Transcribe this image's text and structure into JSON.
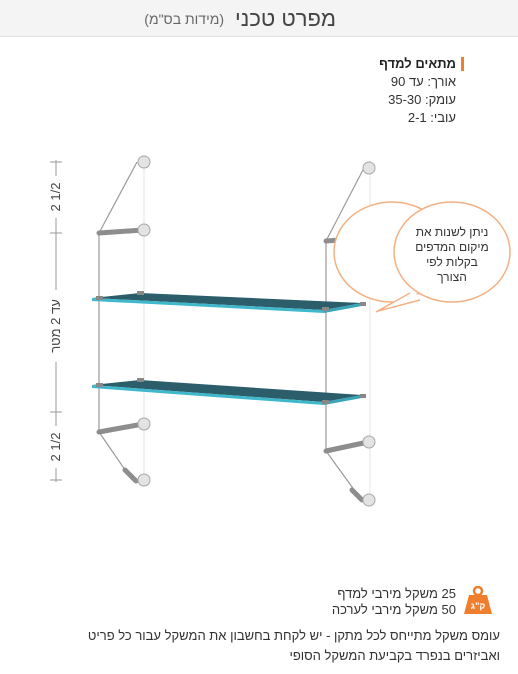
{
  "header": {
    "title": "מפרט טכני",
    "subtitle": "(מידות בס\"מ)"
  },
  "specs": {
    "title": "מתאים למדף",
    "lines": [
      "אורך: עד 90",
      "עומק: 35-30",
      "עובי: 2-1"
    ]
  },
  "dimensions": {
    "top": "2 1/2",
    "middle": "עד 2 מטר",
    "bottom": "2 1/2"
  },
  "callout": {
    "lines": [
      "ניתן לשנות את",
      "מיקום המדפים",
      "בקלות לפי",
      "הצורך"
    ]
  },
  "weights": {
    "line1": "25 משקל מירבי למדף",
    "line2": "50 משקל מירבי לערכה"
  },
  "note": {
    "line1": "עומס משקל מתייחס לכל מתקן - יש לקחת בחשבון את המשקל עבור כל פריט",
    "line2": "ואביזרים בנפרד בקביעת המשקל הסופי"
  },
  "icon": {
    "name": "weight-kg-icon",
    "label": "ק\"ג",
    "color": "#f07f2d"
  },
  "colors": {
    "glass": "#2b5e6a",
    "glass_edge": "#3fb8cc",
    "accent": "#f07f2d",
    "callout_border": "#f3b183"
  }
}
